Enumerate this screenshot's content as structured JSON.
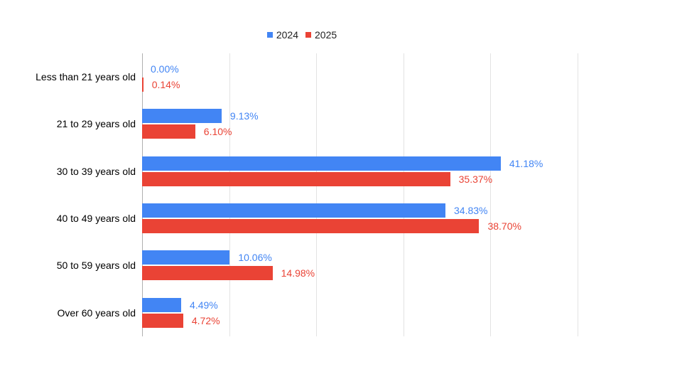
{
  "chart_data": {
    "type": "bar",
    "orientation": "horizontal",
    "title": "",
    "categories": [
      "Less than 21 years old",
      "21 to 29 years old",
      "30 to 39 years old",
      "40 to 49 years old",
      "50 to 59 years old",
      "Over 60 years old"
    ],
    "series": [
      {
        "name": "2024",
        "color": "#4285F4",
        "values": [
          0.0,
          9.13,
          41.18,
          34.83,
          10.06,
          4.49
        ],
        "labels": [
          "0.00%",
          "9.13%",
          "41.18%",
          "34.83%",
          "10.06%",
          "4.49%"
        ]
      },
      {
        "name": "2025",
        "color": "#EA4335",
        "values": [
          0.14,
          6.1,
          35.37,
          38.7,
          14.98,
          4.72
        ],
        "labels": [
          "0.14%",
          "6.10%",
          "35.37%",
          "38.70%",
          "14.98%",
          "4.72%"
        ]
      }
    ],
    "xlim": [
      0,
      50
    ],
    "ticks": [
      0,
      10,
      20,
      30,
      40,
      50
    ],
    "grid": true,
    "x_tick_labels_visible": false,
    "legend_position": "top",
    "data_labels_visible": true
  },
  "colors": {
    "series_2024": "#4285F4",
    "series_2025": "#EA4335",
    "gridline": "#e3e3e3",
    "axis_line": "#b0b0b0",
    "category_text": "#000000",
    "legend_text": "#222222",
    "background": "#ffffff"
  }
}
